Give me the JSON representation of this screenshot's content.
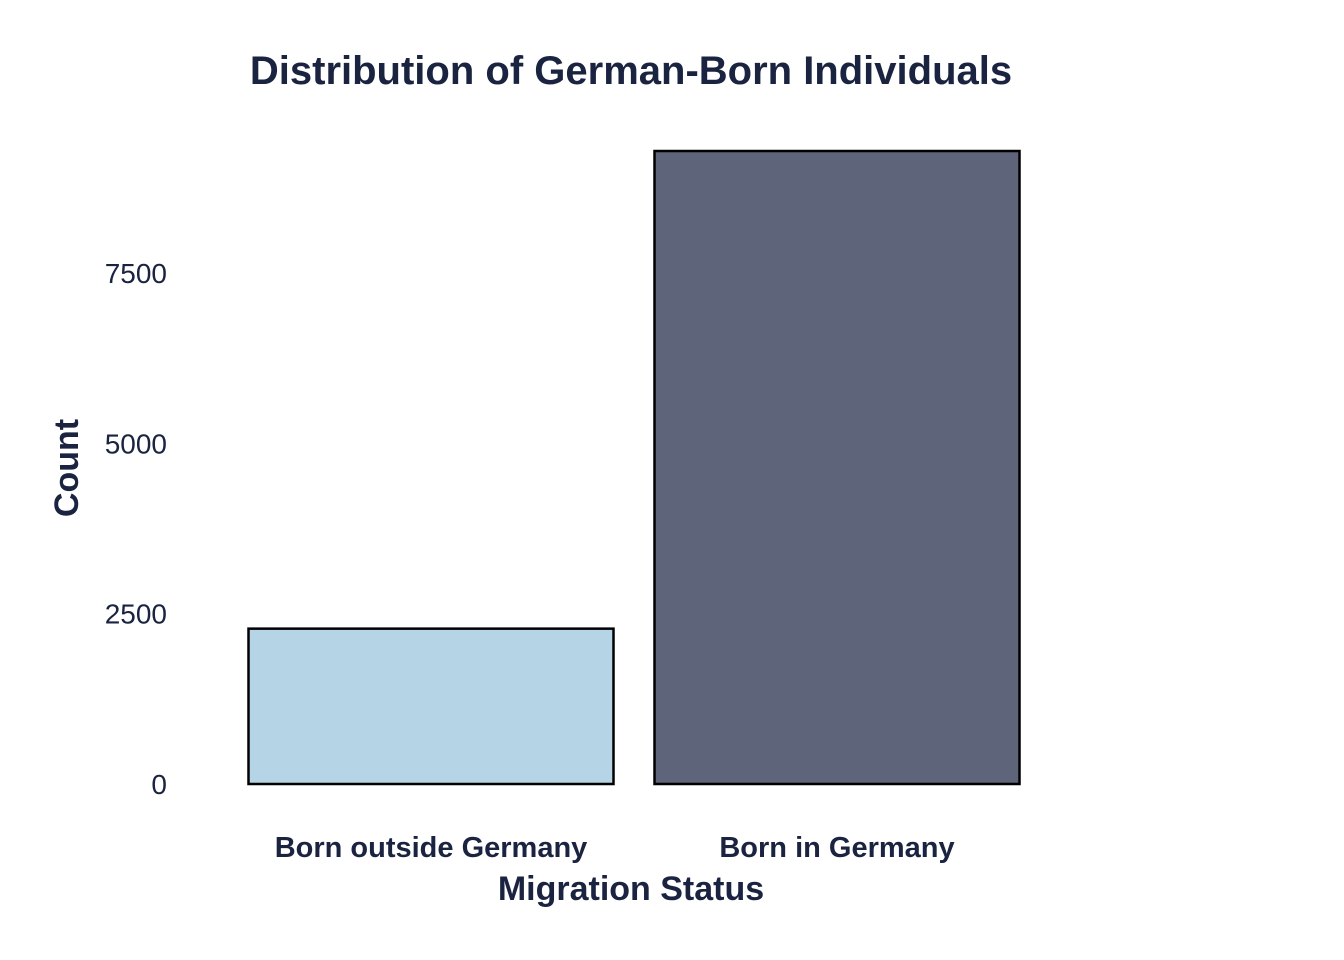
{
  "chart_data": {
    "type": "bar",
    "title": "Distribution of German-Born Individuals",
    "xlabel": "Migration Status",
    "ylabel": "Count",
    "categories": [
      "Born outside Germany",
      "Born in Germany"
    ],
    "values": [
      2280,
      9290
    ],
    "bar_colors": [
      "#b5d5e6",
      "#5e6479"
    ],
    "ylim": [
      0,
      9290
    ],
    "yticks": [
      0,
      2500,
      5000,
      7500
    ],
    "ytick_labels": [
      "0",
      "2500",
      "5000",
      "7500"
    ],
    "grid": false,
    "legend": "none"
  },
  "colors": {
    "text": "#1a2340",
    "bar_outline": "#000000",
    "background": "#ffffff"
  }
}
